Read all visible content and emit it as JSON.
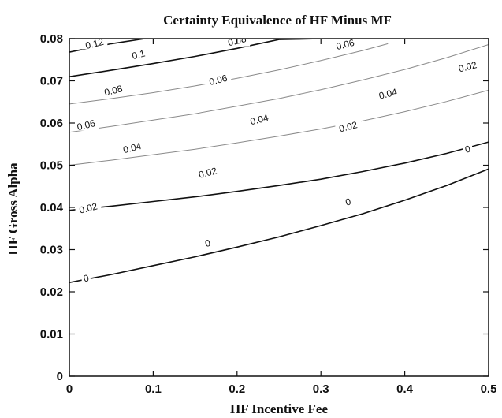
{
  "chart_data": {
    "type": "contour",
    "title": "Certainty Equivalence of HF Minus MF",
    "xlabel": "HF Incentive Fee",
    "ylabel": "HF Gross Alpha",
    "xlim": [
      0,
      0.5
    ],
    "ylim": [
      0,
      0.08
    ],
    "xticks": [
      "0",
      "0.1",
      "0.2",
      "0.3",
      "0.4",
      "0.5"
    ],
    "yticks": [
      "0",
      "0.01",
      "0.02",
      "0.03",
      "0.04",
      "0.05",
      "0.06",
      "0.07",
      "0.08"
    ],
    "grid": false,
    "series": [
      {
        "level": 0.12,
        "style": "dark",
        "x": [
          0,
          0.05,
          0.09
        ],
        "y": [
          0.0768,
          0.0788,
          0.08
        ],
        "labels": [
          {
            "text": "0.12",
            "x": 0.06,
            "y": 0.0788
          }
        ]
      },
      {
        "level": 0.1,
        "style": "dark",
        "x": [
          0,
          0.05,
          0.1,
          0.15,
          0.2,
          0.25,
          0.3
        ],
        "y": [
          0.071,
          0.0725,
          0.0741,
          0.0758,
          0.0777,
          0.0798,
          0.08
        ],
        "labels": [
          {
            "text": "0.1",
            "x": 0.165,
            "y": 0.0762
          }
        ]
      },
      {
        "level": 0.08,
        "style": "light",
        "x": [
          0,
          0.05,
          0.1,
          0.15,
          0.2,
          0.25,
          0.3,
          0.35,
          0.38
        ],
        "y": [
          0.0645,
          0.0658,
          0.0672,
          0.0688,
          0.0706,
          0.0726,
          0.0748,
          0.0772,
          0.0788
        ],
        "labels": [
          {
            "text": "0.08",
            "x": 0.105,
            "y": 0.0677
          },
          {
            "text": "0.08",
            "x": 0.4,
            "y": 0.0795
          }
        ]
      },
      {
        "level": 0.06,
        "style": "light",
        "x": [
          0,
          0.05,
          0.1,
          0.15,
          0.2,
          0.25,
          0.3,
          0.35,
          0.4,
          0.45,
          0.5
        ],
        "y": [
          0.0578,
          0.0592,
          0.0607,
          0.0622,
          0.064,
          0.0658,
          0.0679,
          0.0702,
          0.0727,
          0.0755,
          0.0786
        ],
        "labels": [
          {
            "text": "0.06",
            "x": 0.04,
            "y": 0.0595
          },
          {
            "text": "0.06",
            "x": 0.355,
            "y": 0.0702
          },
          {
            "text": "0.06",
            "x": 0.658,
            "y": 0.0786
          }
        ]
      },
      {
        "level": 0.04,
        "style": "light",
        "x": [
          0,
          0.05,
          0.1,
          0.15,
          0.2,
          0.25,
          0.3,
          0.35,
          0.4,
          0.45,
          0.5
        ],
        "y": [
          0.05,
          0.0512,
          0.0525,
          0.0538,
          0.0553,
          0.0569,
          0.0586,
          0.0605,
          0.0627,
          0.0651,
          0.0678
        ],
        "labels": [
          {
            "text": "0.04",
            "x": 0.15,
            "y": 0.0541
          },
          {
            "text": "0.04",
            "x": 0.453,
            "y": 0.0608
          },
          {
            "text": "0.04",
            "x": 0.76,
            "y": 0.0669
          }
        ]
      },
      {
        "level": 0.02,
        "style": "dark",
        "x": [
          0,
          0.05,
          0.1,
          0.15,
          0.2,
          0.25,
          0.3,
          0.35,
          0.4,
          0.45,
          0.5
        ],
        "y": [
          0.0393,
          0.0403,
          0.0414,
          0.0425,
          0.0438,
          0.0452,
          0.0467,
          0.0485,
          0.0505,
          0.0528,
          0.0555
        ],
        "labels": [
          {
            "text": "0.02",
            "x": 0.045,
            "y": 0.0398
          },
          {
            "text": "0.02",
            "x": 0.33,
            "y": 0.0482
          },
          {
            "text": "0.02",
            "x": 0.665,
            "y": 0.0591
          },
          {
            "text": "0.02",
            "x": 0.95,
            "y": 0.0733
          }
        ]
      },
      {
        "level": 0,
        "style": "dark",
        "x": [
          0,
          0.05,
          0.1,
          0.15,
          0.2,
          0.25,
          0.3,
          0.35,
          0.4,
          0.45,
          0.5
        ],
        "y": [
          0.0222,
          0.0241,
          0.0262,
          0.0283,
          0.0306,
          0.033,
          0.0357,
          0.0385,
          0.0417,
          0.0452,
          0.0491
        ],
        "labels": [
          {
            "text": "0",
            "x": 0.04,
            "y": 0.0232
          },
          {
            "text": "0",
            "x": 0.33,
            "y": 0.0315
          },
          {
            "text": "0",
            "x": 0.665,
            "y": 0.0413
          },
          {
            "text": "0",
            "x": 0.95,
            "y": 0.0538
          }
        ]
      }
    ]
  }
}
